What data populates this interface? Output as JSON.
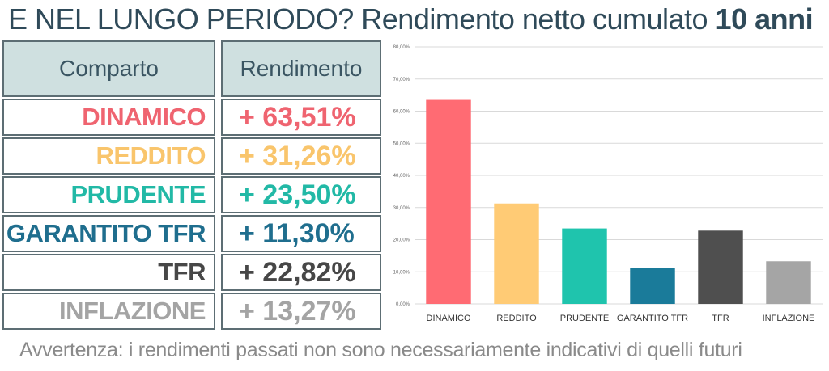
{
  "title": {
    "regular": "E NEL LUNGO PERIODO? Rendimento netto cumulato ",
    "bold": "10 anni"
  },
  "table": {
    "headers": [
      "Comparto",
      "Rendimento"
    ],
    "rows": [
      {
        "name": "DINAMICO",
        "value": "+ 63,51%",
        "color": "#ef6470"
      },
      {
        "name": "REDDITO",
        "value": "+ 31,26%",
        "color": "#f9c56c"
      },
      {
        "name": "PRUDENTE",
        "value": "+ 23,50%",
        "color": "#22b9a6"
      },
      {
        "name": "GARANTITO TFR",
        "value": "+ 11,30%",
        "color": "#1f6e8e"
      },
      {
        "name": "TFR",
        "value": "+ 22,82%",
        "color": "#474747"
      },
      {
        "name": "INFLAZIONE",
        "value": "+ 13,27%",
        "color": "#a4a4a4"
      }
    ]
  },
  "chart_data": {
    "type": "bar",
    "categories": [
      "DINAMICO",
      "REDDITO",
      "PRUDENTE",
      "GARANTITO TFR",
      "TFR",
      "INFLAZIONE"
    ],
    "values": [
      63.51,
      31.26,
      23.5,
      11.3,
      22.82,
      13.27
    ],
    "colors": [
      "#ff6b73",
      "#ffcb75",
      "#1fc4ad",
      "#1a7b9a",
      "#4f4f4f",
      "#a5a5a5"
    ],
    "ylim": [
      0,
      80
    ],
    "yticks": [
      "0,00%",
      "10,00%",
      "20,00%",
      "30,00%",
      "40,00%",
      "50,00%",
      "60,00%",
      "70,00%",
      "80,00%"
    ],
    "grid": true,
    "title": "",
    "xlabel": "",
    "ylabel": ""
  },
  "note": "Avvertenza: i rendimenti passati non sono necessariamente indicativi di quelli futuri"
}
